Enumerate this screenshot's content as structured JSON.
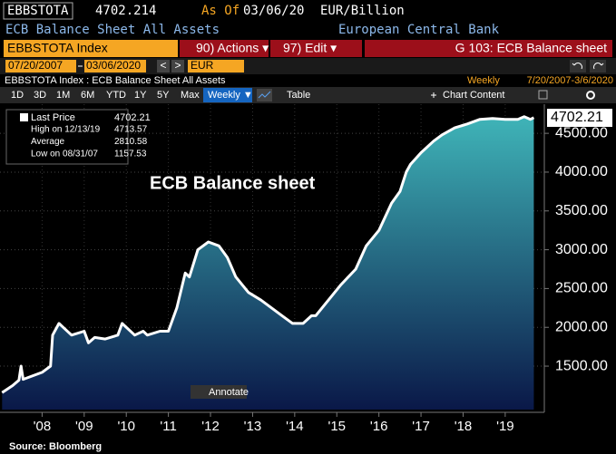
{
  "header": {
    "ticker": "EBBSTOTA",
    "price": "4702.214",
    "as_of_label": "As Of",
    "as_of_date": "03/06/20",
    "units": "EUR/Billion",
    "description": "ECB Balance Sheet All Assets",
    "source_name": "European Central Bank"
  },
  "command_bar": {
    "security": "EBBSTOTA Index",
    "actions": "90) Actions ▾",
    "edit": "97) Edit ▾",
    "function": "G 103: ECB Balance sheet"
  },
  "range_bar": {
    "start_date": "07/20/2007",
    "end_date": "03/06/2020",
    "prev": "<",
    "next": ">",
    "currency": "EUR"
  },
  "info_bar": {
    "security_title": "EBBSTOTA Index : ECB Balance Sheet All Assets",
    "frequency": "Weekly",
    "date_range": "7/20/2007-3/6/2020"
  },
  "period_buttons": [
    "1D",
    "3D",
    "1M",
    "6M",
    "YTD",
    "1Y",
    "5Y",
    "Max"
  ],
  "frequency_dropdown": "Weekly ▼",
  "table_button": "Table",
  "chart_content_button": "Chart Content",
  "chart_data": {
    "type": "area",
    "annotation": "ECB Balance sheet",
    "annotate_button": "Annotate",
    "source": "Source: Bloomberg",
    "last_value_label": "4702.21",
    "stats": [
      {
        "label": "High on 12/13/19",
        "value": "4713.57"
      },
      {
        "label": "Average",
        "value": "2810.58"
      },
      {
        "label": "Low on 08/31/07",
        "value": "1157.53"
      }
    ],
    "x": [
      2007.55,
      2007.8,
      2007.95,
      2008.0,
      2008.05,
      2008.5,
      2008.7,
      2008.75,
      2008.9,
      2009.0,
      2009.2,
      2009.5,
      2009.6,
      2009.75,
      2010.0,
      2010.3,
      2010.4,
      2010.5,
      2010.7,
      2010.9,
      2011.0,
      2011.3,
      2011.5,
      2011.7,
      2011.9,
      2012.0,
      2012.2,
      2012.45,
      2012.7,
      2012.9,
      2013.1,
      2013.4,
      2013.7,
      2013.95,
      2014.2,
      2014.45,
      2014.7,
      2014.9,
      2015.0,
      2015.3,
      2015.6,
      2015.95,
      2016.2,
      2016.5,
      2016.8,
      2017.0,
      2017.15,
      2017.25,
      2017.5,
      2017.8,
      2018.0,
      2018.3,
      2018.6,
      2018.9,
      2019.2,
      2019.5,
      2019.8,
      2019.95,
      2020.1,
      2020.18
    ],
    "series": [
      {
        "name": "Last Price",
        "color": "#ffffff",
        "value_labels": null,
        "values": [
          1160,
          1250,
          1320,
          1500,
          1330,
          1420,
          1500,
          1900,
          2050,
          2000,
          1900,
          1950,
          1800,
          1870,
          1850,
          1900,
          2050,
          2000,
          1900,
          1950,
          1900,
          1950,
          1950,
          2250,
          2700,
          2650,
          3000,
          3100,
          3050,
          2900,
          2650,
          2450,
          2350,
          2250,
          2150,
          2050,
          2050,
          2150,
          2150,
          2350,
          2550,
          2750,
          3050,
          3250,
          3600,
          3750,
          4000,
          4100,
          4250,
          4400,
          4480,
          4570,
          4620,
          4680,
          4690,
          4680,
          4680,
          4713.57,
          4680,
          4702.21
        ]
      }
    ],
    "area_colors": [
      "#3fb4b8",
      "#0a1848"
    ],
    "xlim": [
      2007.5,
      2020.3
    ],
    "xticks": [
      {
        "value": 2008.5,
        "label": "'08"
      },
      {
        "value": 2009.5,
        "label": "'09"
      },
      {
        "value": 2010.5,
        "label": "'10"
      },
      {
        "value": 2011.5,
        "label": "'11"
      },
      {
        "value": 2012.5,
        "label": "'12"
      },
      {
        "value": 2013.5,
        "label": "'13"
      },
      {
        "value": 2014.5,
        "label": "'14"
      },
      {
        "value": 2015.5,
        "label": "'15"
      },
      {
        "value": 2016.5,
        "label": "'16"
      },
      {
        "value": 2017.5,
        "label": "'17"
      },
      {
        "value": 2018.5,
        "label": "'18"
      },
      {
        "value": 2019.5,
        "label": "'19"
      }
    ],
    "ylim": [
      940,
      4840
    ],
    "yticks": [
      {
        "value": 1500,
        "label": "1500.00"
      },
      {
        "value": 2000,
        "label": "2000.00"
      },
      {
        "value": 2500,
        "label": "2500.00"
      },
      {
        "value": 3000,
        "label": "3000.00"
      },
      {
        "value": 3500,
        "label": "3500.00"
      },
      {
        "value": 4000,
        "label": "4000.00"
      },
      {
        "value": 4500,
        "label": "4500.00"
      }
    ],
    "grid": true
  }
}
